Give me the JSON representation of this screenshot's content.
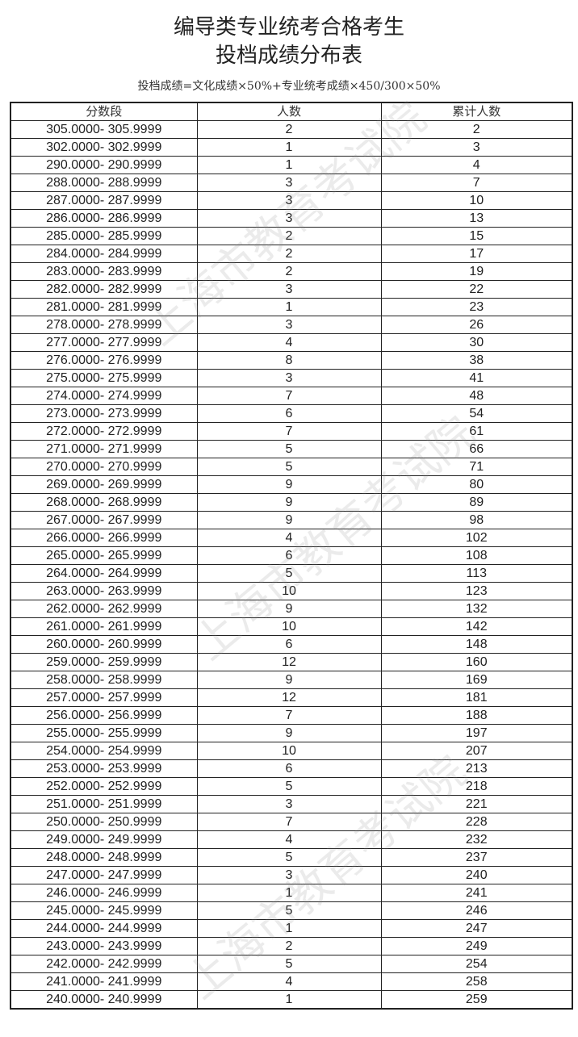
{
  "title_line1": "编导类专业统考合格考生",
  "title_line2": "投档成绩分布表",
  "formula": "投档成绩=文化成绩×50%+专业统考成绩×450/300×50%",
  "watermark": "上海市教育考试院",
  "table": {
    "headers": [
      "分数段",
      "人数",
      "累计人数"
    ],
    "rows": [
      [
        "305.0000- 305.9999",
        "2",
        "2"
      ],
      [
        "302.0000- 302.9999",
        "1",
        "3"
      ],
      [
        "290.0000- 290.9999",
        "1",
        "4"
      ],
      [
        "288.0000- 288.9999",
        "3",
        "7"
      ],
      [
        "287.0000- 287.9999",
        "3",
        "10"
      ],
      [
        "286.0000- 286.9999",
        "3",
        "13"
      ],
      [
        "285.0000- 285.9999",
        "2",
        "15"
      ],
      [
        "284.0000- 284.9999",
        "2",
        "17"
      ],
      [
        "283.0000- 283.9999",
        "2",
        "19"
      ],
      [
        "282.0000- 282.9999",
        "3",
        "22"
      ],
      [
        "281.0000- 281.9999",
        "1",
        "23"
      ],
      [
        "278.0000- 278.9999",
        "3",
        "26"
      ],
      [
        "277.0000- 277.9999",
        "4",
        "30"
      ],
      [
        "276.0000- 276.9999",
        "8",
        "38"
      ],
      [
        "275.0000- 275.9999",
        "3",
        "41"
      ],
      [
        "274.0000- 274.9999",
        "7",
        "48"
      ],
      [
        "273.0000- 273.9999",
        "6",
        "54"
      ],
      [
        "272.0000- 272.9999",
        "7",
        "61"
      ],
      [
        "271.0000- 271.9999",
        "5",
        "66"
      ],
      [
        "270.0000- 270.9999",
        "5",
        "71"
      ],
      [
        "269.0000- 269.9999",
        "9",
        "80"
      ],
      [
        "268.0000- 268.9999",
        "9",
        "89"
      ],
      [
        "267.0000- 267.9999",
        "9",
        "98"
      ],
      [
        "266.0000- 266.9999",
        "4",
        "102"
      ],
      [
        "265.0000- 265.9999",
        "6",
        "108"
      ],
      [
        "264.0000- 264.9999",
        "5",
        "113"
      ],
      [
        "263.0000- 263.9999",
        "10",
        "123"
      ],
      [
        "262.0000- 262.9999",
        "9",
        "132"
      ],
      [
        "261.0000- 261.9999",
        "10",
        "142"
      ],
      [
        "260.0000- 260.9999",
        "6",
        "148"
      ],
      [
        "259.0000- 259.9999",
        "12",
        "160"
      ],
      [
        "258.0000- 258.9999",
        "9",
        "169"
      ],
      [
        "257.0000- 257.9999",
        "12",
        "181"
      ],
      [
        "256.0000- 256.9999",
        "7",
        "188"
      ],
      [
        "255.0000- 255.9999",
        "9",
        "197"
      ],
      [
        "254.0000- 254.9999",
        "10",
        "207"
      ],
      [
        "253.0000- 253.9999",
        "6",
        "213"
      ],
      [
        "252.0000- 252.9999",
        "5",
        "218"
      ],
      [
        "251.0000- 251.9999",
        "3",
        "221"
      ],
      [
        "250.0000- 250.9999",
        "7",
        "228"
      ],
      [
        "249.0000- 249.9999",
        "4",
        "232"
      ],
      [
        "248.0000- 248.9999",
        "5",
        "237"
      ],
      [
        "247.0000- 247.9999",
        "3",
        "240"
      ],
      [
        "246.0000- 246.9999",
        "1",
        "241"
      ],
      [
        "245.0000- 245.9999",
        "5",
        "246"
      ],
      [
        "244.0000- 244.9999",
        "1",
        "247"
      ],
      [
        "243.0000- 243.9999",
        "2",
        "249"
      ],
      [
        "242.0000- 242.9999",
        "5",
        "254"
      ],
      [
        "241.0000- 241.9999",
        "4",
        "258"
      ],
      [
        "240.0000- 240.9999",
        "1",
        "259"
      ]
    ]
  }
}
